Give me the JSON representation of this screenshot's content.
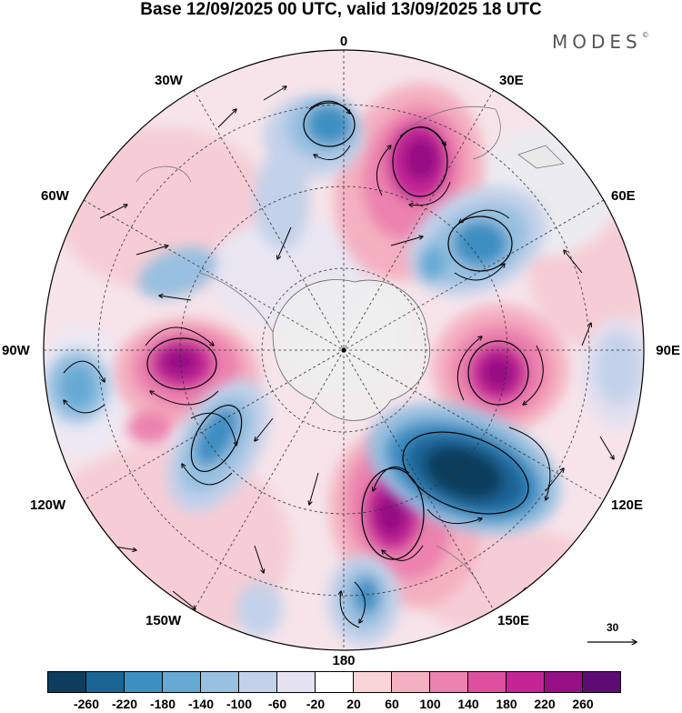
{
  "title": "Base 12/09/2025 00 UTC, valid 13/09/2025 18 UTC",
  "brand": "MODES",
  "brand_mark": "©",
  "longitude_labels": {
    "top": "0",
    "bottom": "180",
    "left": "90W",
    "right": "90E",
    "upper_left_1": "30W",
    "upper_left_2": "60W",
    "upper_right_1": "30E",
    "upper_right_2": "60E",
    "lower_left_1": "120W",
    "lower_left_2": "150W",
    "lower_right_1": "120E",
    "lower_right_2": "150E"
  },
  "reference_vector": "30",
  "colorbar": {
    "colors": [
      "#0d3c5c",
      "#1b6496",
      "#3d8fc2",
      "#66aad4",
      "#98c0e0",
      "#c3d1ea",
      "#e5e2f1",
      "#ffffff",
      "#f9d4d8",
      "#f4b0c0",
      "#ec82ae",
      "#de4fa0",
      "#c42596",
      "#960f84",
      "#5e0c73"
    ],
    "tick_labels": [
      "-260",
      "-220",
      "-180",
      "-140",
      "-100",
      "-60",
      "-20",
      "20",
      "60",
      "100",
      "140",
      "180",
      "220",
      "260"
    ]
  },
  "anomaly_centers": [
    {
      "name": "positive-center-30e",
      "value": 240
    },
    {
      "name": "positive-center-90e",
      "value": 240
    },
    {
      "name": "positive-center-90w",
      "value": 230
    },
    {
      "name": "positive-center-150e",
      "value": 250
    },
    {
      "name": "negative-center-120e",
      "value": -270
    },
    {
      "name": "negative-center-60e",
      "value": -170
    },
    {
      "name": "negative-center-15w",
      "value": -160
    },
    {
      "name": "negative-center-110w",
      "value": -170
    },
    {
      "name": "negative-center-170e",
      "value": -150
    }
  ]
}
